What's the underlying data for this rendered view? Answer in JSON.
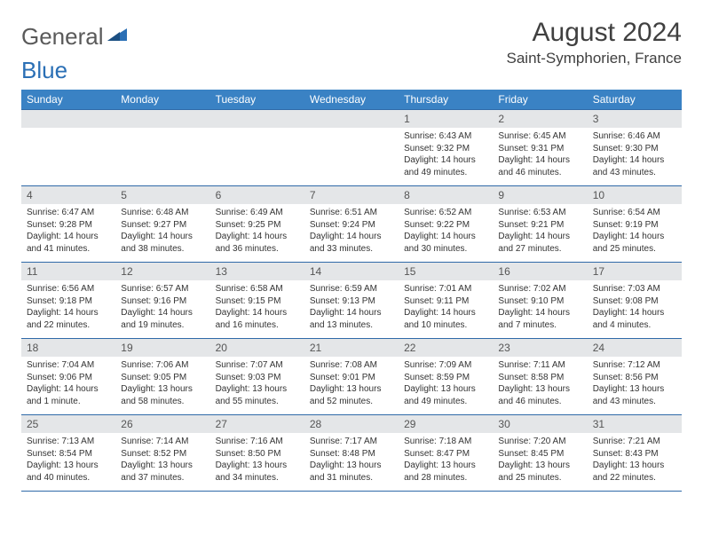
{
  "brand": {
    "part1": "General",
    "part2": "Blue"
  },
  "title": {
    "month": "August 2024",
    "location": "Saint-Symphorien, France"
  },
  "colors": {
    "header_bg": "#3a82c4",
    "header_text": "#ffffff",
    "row_border": "#2f6aa8",
    "daynum_bg": "#e4e6e8",
    "brand_blue": "#2a6fb5"
  },
  "weekdays": [
    "Sunday",
    "Monday",
    "Tuesday",
    "Wednesday",
    "Thursday",
    "Friday",
    "Saturday"
  ],
  "cells": [
    [
      null,
      null,
      null,
      null,
      {
        "n": "1",
        "sunrise": "Sunrise: 6:43 AM",
        "sunset": "Sunset: 9:32 PM",
        "daylight": "Daylight: 14 hours and 49 minutes."
      },
      {
        "n": "2",
        "sunrise": "Sunrise: 6:45 AM",
        "sunset": "Sunset: 9:31 PM",
        "daylight": "Daylight: 14 hours and 46 minutes."
      },
      {
        "n": "3",
        "sunrise": "Sunrise: 6:46 AM",
        "sunset": "Sunset: 9:30 PM",
        "daylight": "Daylight: 14 hours and 43 minutes."
      }
    ],
    [
      {
        "n": "4",
        "sunrise": "Sunrise: 6:47 AM",
        "sunset": "Sunset: 9:28 PM",
        "daylight": "Daylight: 14 hours and 41 minutes."
      },
      {
        "n": "5",
        "sunrise": "Sunrise: 6:48 AM",
        "sunset": "Sunset: 9:27 PM",
        "daylight": "Daylight: 14 hours and 38 minutes."
      },
      {
        "n": "6",
        "sunrise": "Sunrise: 6:49 AM",
        "sunset": "Sunset: 9:25 PM",
        "daylight": "Daylight: 14 hours and 36 minutes."
      },
      {
        "n": "7",
        "sunrise": "Sunrise: 6:51 AM",
        "sunset": "Sunset: 9:24 PM",
        "daylight": "Daylight: 14 hours and 33 minutes."
      },
      {
        "n": "8",
        "sunrise": "Sunrise: 6:52 AM",
        "sunset": "Sunset: 9:22 PM",
        "daylight": "Daylight: 14 hours and 30 minutes."
      },
      {
        "n": "9",
        "sunrise": "Sunrise: 6:53 AM",
        "sunset": "Sunset: 9:21 PM",
        "daylight": "Daylight: 14 hours and 27 minutes."
      },
      {
        "n": "10",
        "sunrise": "Sunrise: 6:54 AM",
        "sunset": "Sunset: 9:19 PM",
        "daylight": "Daylight: 14 hours and 25 minutes."
      }
    ],
    [
      {
        "n": "11",
        "sunrise": "Sunrise: 6:56 AM",
        "sunset": "Sunset: 9:18 PM",
        "daylight": "Daylight: 14 hours and 22 minutes."
      },
      {
        "n": "12",
        "sunrise": "Sunrise: 6:57 AM",
        "sunset": "Sunset: 9:16 PM",
        "daylight": "Daylight: 14 hours and 19 minutes."
      },
      {
        "n": "13",
        "sunrise": "Sunrise: 6:58 AM",
        "sunset": "Sunset: 9:15 PM",
        "daylight": "Daylight: 14 hours and 16 minutes."
      },
      {
        "n": "14",
        "sunrise": "Sunrise: 6:59 AM",
        "sunset": "Sunset: 9:13 PM",
        "daylight": "Daylight: 14 hours and 13 minutes."
      },
      {
        "n": "15",
        "sunrise": "Sunrise: 7:01 AM",
        "sunset": "Sunset: 9:11 PM",
        "daylight": "Daylight: 14 hours and 10 minutes."
      },
      {
        "n": "16",
        "sunrise": "Sunrise: 7:02 AM",
        "sunset": "Sunset: 9:10 PM",
        "daylight": "Daylight: 14 hours and 7 minutes."
      },
      {
        "n": "17",
        "sunrise": "Sunrise: 7:03 AM",
        "sunset": "Sunset: 9:08 PM",
        "daylight": "Daylight: 14 hours and 4 minutes."
      }
    ],
    [
      {
        "n": "18",
        "sunrise": "Sunrise: 7:04 AM",
        "sunset": "Sunset: 9:06 PM",
        "daylight": "Daylight: 14 hours and 1 minute."
      },
      {
        "n": "19",
        "sunrise": "Sunrise: 7:06 AM",
        "sunset": "Sunset: 9:05 PM",
        "daylight": "Daylight: 13 hours and 58 minutes."
      },
      {
        "n": "20",
        "sunrise": "Sunrise: 7:07 AM",
        "sunset": "Sunset: 9:03 PM",
        "daylight": "Daylight: 13 hours and 55 minutes."
      },
      {
        "n": "21",
        "sunrise": "Sunrise: 7:08 AM",
        "sunset": "Sunset: 9:01 PM",
        "daylight": "Daylight: 13 hours and 52 minutes."
      },
      {
        "n": "22",
        "sunrise": "Sunrise: 7:09 AM",
        "sunset": "Sunset: 8:59 PM",
        "daylight": "Daylight: 13 hours and 49 minutes."
      },
      {
        "n": "23",
        "sunrise": "Sunrise: 7:11 AM",
        "sunset": "Sunset: 8:58 PM",
        "daylight": "Daylight: 13 hours and 46 minutes."
      },
      {
        "n": "24",
        "sunrise": "Sunrise: 7:12 AM",
        "sunset": "Sunset: 8:56 PM",
        "daylight": "Daylight: 13 hours and 43 minutes."
      }
    ],
    [
      {
        "n": "25",
        "sunrise": "Sunrise: 7:13 AM",
        "sunset": "Sunset: 8:54 PM",
        "daylight": "Daylight: 13 hours and 40 minutes."
      },
      {
        "n": "26",
        "sunrise": "Sunrise: 7:14 AM",
        "sunset": "Sunset: 8:52 PM",
        "daylight": "Daylight: 13 hours and 37 minutes."
      },
      {
        "n": "27",
        "sunrise": "Sunrise: 7:16 AM",
        "sunset": "Sunset: 8:50 PM",
        "daylight": "Daylight: 13 hours and 34 minutes."
      },
      {
        "n": "28",
        "sunrise": "Sunrise: 7:17 AM",
        "sunset": "Sunset: 8:48 PM",
        "daylight": "Daylight: 13 hours and 31 minutes."
      },
      {
        "n": "29",
        "sunrise": "Sunrise: 7:18 AM",
        "sunset": "Sunset: 8:47 PM",
        "daylight": "Daylight: 13 hours and 28 minutes."
      },
      {
        "n": "30",
        "sunrise": "Sunrise: 7:20 AM",
        "sunset": "Sunset: 8:45 PM",
        "daylight": "Daylight: 13 hours and 25 minutes."
      },
      {
        "n": "31",
        "sunrise": "Sunrise: 7:21 AM",
        "sunset": "Sunset: 8:43 PM",
        "daylight": "Daylight: 13 hours and 22 minutes."
      }
    ]
  ]
}
